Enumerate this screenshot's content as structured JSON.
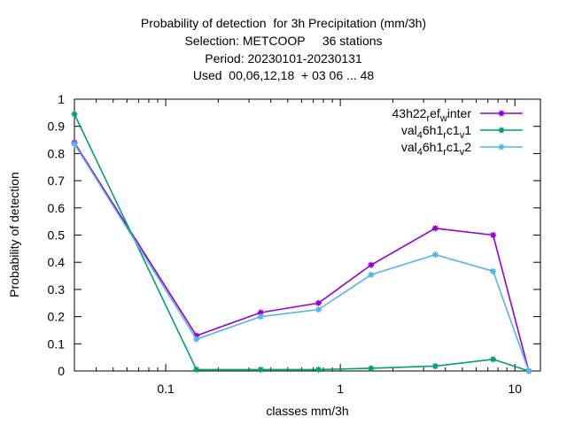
{
  "chart_data": {
    "type": "line",
    "title_lines": [
      "Probability of detection  for 3h Precipitation (mm/3h)",
      "Selection: METCOOP     36 stations",
      "Period: 20230101-20230131",
      "Used  00,06,12,18  + 03 06 ... 48"
    ],
    "xlabel": "classes mm/3h",
    "ylabel": "Probability of detection",
    "x_scale": "log",
    "xlim": [
      0.03,
      14
    ],
    "ylim": [
      0,
      1
    ],
    "x_ticks": [
      0.1,
      1,
      10
    ],
    "x_tick_labels": [
      "0.1",
      "1",
      "10"
    ],
    "y_ticks": [
      0,
      0.1,
      0.2,
      0.3,
      0.4,
      0.5,
      0.6,
      0.7,
      0.8,
      0.9,
      1
    ],
    "y_tick_labels": [
      "0",
      "0.1",
      "0.2",
      "0.3",
      "0.4",
      "0.5",
      "0.6",
      "0.7",
      "0.8",
      "0.9",
      "1"
    ],
    "grid": false,
    "legend_position": "top-right",
    "series": [
      {
        "name": "43h22_ref_winter",
        "legend": {
          "parts": [
            [
              "43h22",
              "n"
            ],
            [
              "r",
              "sub"
            ],
            [
              "ef",
              "n"
            ],
            [
              "w",
              "sub"
            ],
            [
              "inter",
              "n"
            ]
          ]
        },
        "color": "#9400d3",
        "x": [
          0.03,
          0.15,
          0.35,
          0.75,
          1.5,
          3.5,
          7.5,
          12
        ],
        "y": [
          0.84,
          0.13,
          0.215,
          0.25,
          0.39,
          0.525,
          0.5,
          0.0
        ]
      },
      {
        "name": "val_46h1_rc1_v1",
        "legend": {
          "parts": [
            [
              "val",
              "n"
            ],
            [
              "4",
              "sub"
            ],
            [
              "6h1",
              "n"
            ],
            [
              "r",
              "sub"
            ],
            [
              "c1",
              "n"
            ],
            [
              "v",
              "sub"
            ],
            [
              "1",
              "n"
            ]
          ]
        },
        "color": "#009e73",
        "x": [
          0.03,
          0.15,
          0.35,
          0.75,
          1.5,
          3.5,
          7.5,
          12
        ],
        "y": [
          0.945,
          0.005,
          0.005,
          0.005,
          0.01,
          0.018,
          0.043,
          0.0
        ]
      },
      {
        "name": "val_46h1_rc1_v2",
        "legend": {
          "parts": [
            [
              "val",
              "n"
            ],
            [
              "4",
              "sub"
            ],
            [
              "6h1",
              "n"
            ],
            [
              "r",
              "sub"
            ],
            [
              "c1",
              "n"
            ],
            [
              "v",
              "sub"
            ],
            [
              "2",
              "n"
            ]
          ]
        },
        "color": "#56b4e9",
        "x": [
          0.03,
          0.15,
          0.35,
          0.75,
          1.5,
          3.5,
          7.5,
          12
        ],
        "y": [
          0.835,
          0.117,
          0.2,
          0.226,
          0.354,
          0.428,
          0.367,
          0.0
        ]
      }
    ]
  }
}
